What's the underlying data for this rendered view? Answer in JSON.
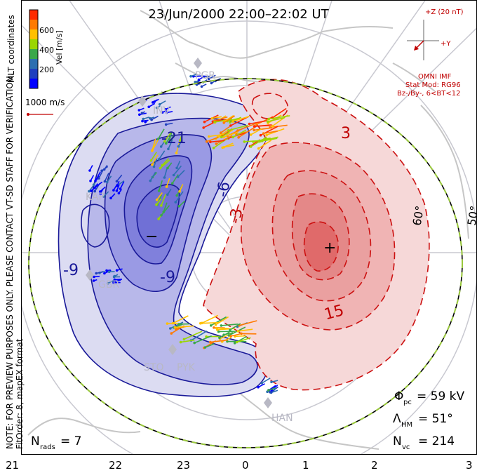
{
  "title": "23/Jun/2000 22:00–22:02 UT",
  "notice": {
    "line1": "NOTE: FOR PREVIEW PURPOSES ONLY. PLEASE CONTACT VT-SD STAFF FOR VERIFICATION.",
    "line2": "FitOrder: 8, mapEX format"
  },
  "coord_system": "MLT coordinates",
  "colorbar": {
    "label": "Vel [m/s]",
    "ticks": [
      "600",
      "400",
      "200"
    ],
    "colors": [
      "#ff2a00",
      "#ff7a00",
      "#ffc000",
      "#9ad600",
      "#3aa84a",
      "#2c6fb0",
      "#1f3fbf",
      "#0000ff"
    ]
  },
  "vector_scale": {
    "label": "1000 m/s"
  },
  "imf": {
    "axis_z": "+Z (20 nT)",
    "axis_y": "+Y",
    "source": "OMNI IMF",
    "model_line1": "Stat Mod: RG96",
    "model_line2": "Bz-/By-, 6<BT<12"
  },
  "contour_labels": {
    "negative": [
      "-21",
      "-9",
      "-9",
      "-6",
      "-3"
    ],
    "positive": [
      "3",
      "15"
    ],
    "min_marker": "−",
    "max_marker": "+"
  },
  "lat_labels": [
    "60°",
    "50°"
  ],
  "sites": [
    "PGR",
    "INV",
    "KAP",
    "GBR",
    "STO",
    "PYK",
    "HAN"
  ],
  "stats": {
    "phi_symbol": "Φ",
    "phi_sub": "pc",
    "phi_value": "= 59 kV",
    "lambda_symbol": "Λ",
    "lambda_sub": "HM",
    "lambda_value": "= 51°",
    "nvc_symbol": "N",
    "nvc_sub": "vc",
    "nvc_value": "= 214",
    "nrads_symbol": "N",
    "nrads_sub": "rads",
    "nrads_value": "= 7"
  },
  "mlt_ticks": [
    "21",
    "22",
    "23",
    "0",
    "1",
    "2",
    "3"
  ],
  "colors": {
    "negative_line": "#1a1a99",
    "negative_fill_outer": "#dcdcf2",
    "negative_fill_mid": "#b8b8ea",
    "negative_fill_inner": "#8c8ce0",
    "positive_line": "#cc1111",
    "positive_fill_outer": "#f6d8d8",
    "positive_fill_mid": "#eea0a0",
    "positive_fill_inner": "#e46060",
    "hmb_line": "#9ac93c",
    "land": "#d0d0d0"
  }
}
